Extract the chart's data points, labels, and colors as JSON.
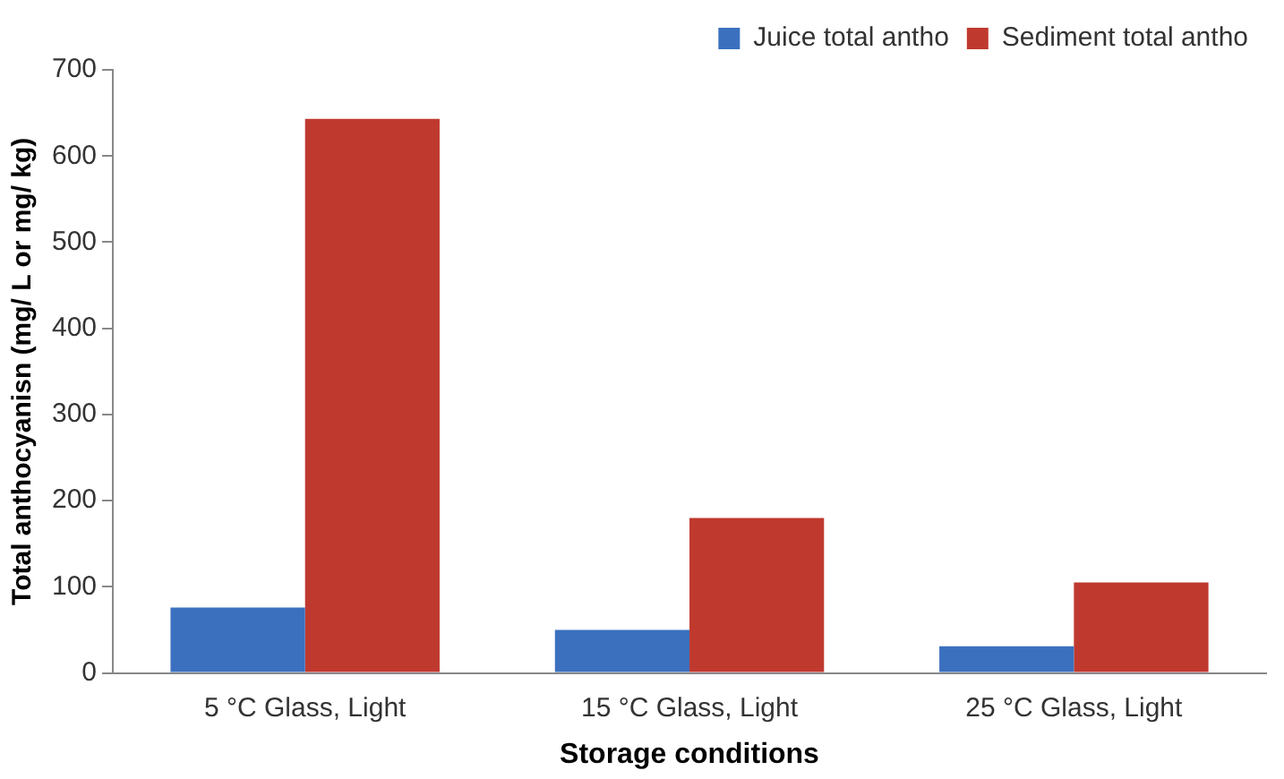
{
  "chart_data": {
    "type": "bar",
    "xlabel": "Storage conditions",
    "ylabel": "Total anthocyanisn (mg/ L or mg/ kg)",
    "categories": [
      "5 °C Glass, Light",
      "15 °C Glass, Light",
      "25 °C Glass, Light"
    ],
    "series": [
      {
        "name": "Juice total antho",
        "color": "#3b70bf",
        "values": [
          76,
          50,
          31
        ]
      },
      {
        "name": "Sediment total antho",
        "color": "#c0392f",
        "values": [
          643,
          180,
          105
        ]
      }
    ],
    "ylim": [
      0,
      700
    ],
    "yticks": [
      0,
      100,
      200,
      300,
      400,
      500,
      600,
      700
    ],
    "grid": false,
    "legend": "top right"
  }
}
